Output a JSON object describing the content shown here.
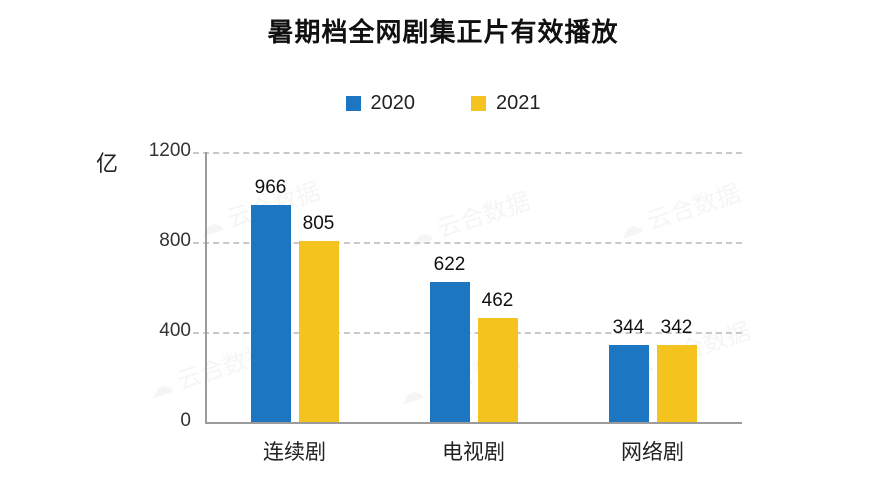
{
  "title": "暑期档全网剧集正片有效播放",
  "watermark": "云合数据",
  "chart_data": {
    "type": "bar",
    "categories": [
      "连续剧",
      "电视剧",
      "网络剧"
    ],
    "series": [
      {
        "name": "2020",
        "color": "#1D76C2",
        "values": [
          966,
          622,
          344
        ]
      },
      {
        "name": "2021",
        "color": "#F5C31D",
        "values": [
          805,
          462,
          342
        ]
      }
    ],
    "title": "暑期档全网剧集正片有效播放",
    "xlabel": "",
    "ylabel": "亿",
    "ylim": [
      0,
      1200
    ],
    "yticks": [
      0,
      400,
      800,
      1200
    ],
    "grid": "horizontal-dashed",
    "legend_position": "top-center"
  }
}
